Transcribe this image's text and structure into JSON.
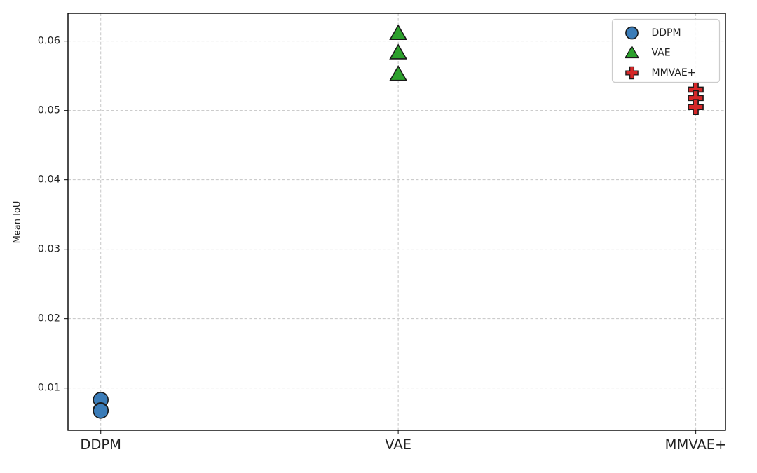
{
  "figure": {
    "background": "#ffffff",
    "axes_edge_color": "#000000",
    "grid_color": "#cccccc",
    "tick_color": "#333333",
    "text_color": "#222222"
  },
  "chart_data": {
    "type": "scatter",
    "title": "",
    "xlabel": "",
    "ylabel": "Mean IoU",
    "categories": [
      "DDPM",
      "VAE",
      "MMVAE+"
    ],
    "series": [
      {
        "name": "DDPM",
        "marker": "circle",
        "color": "#3a7cb8",
        "x": 0,
        "values": [
          0.0083,
          0.0068,
          0.0067
        ]
      },
      {
        "name": "VAE",
        "marker": "triangle",
        "color": "#2ca02c",
        "x": 1,
        "values": [
          0.0611,
          0.0583,
          0.0552
        ]
      },
      {
        "name": "MMVAE+",
        "marker": "plus",
        "color": "#d62728",
        "x": 2,
        "values": [
          0.053,
          0.0518,
          0.0505
        ]
      }
    ],
    "marker_edge_color": "#1a1a1a",
    "yticks": [
      0.01,
      0.02,
      0.03,
      0.04,
      0.05,
      0.06
    ],
    "ytick_labels": [
      "0.01",
      "0.02",
      "0.03",
      "0.04",
      "0.05",
      "0.06"
    ],
    "ylim": [
      0.0039,
      0.064
    ],
    "xlim": [
      -0.11,
      2.1
    ],
    "grid": true,
    "grid_style": "dashed",
    "legend": {
      "position": "upper right",
      "entries": [
        "DDPM",
        "VAE",
        "MMVAE+"
      ]
    }
  }
}
